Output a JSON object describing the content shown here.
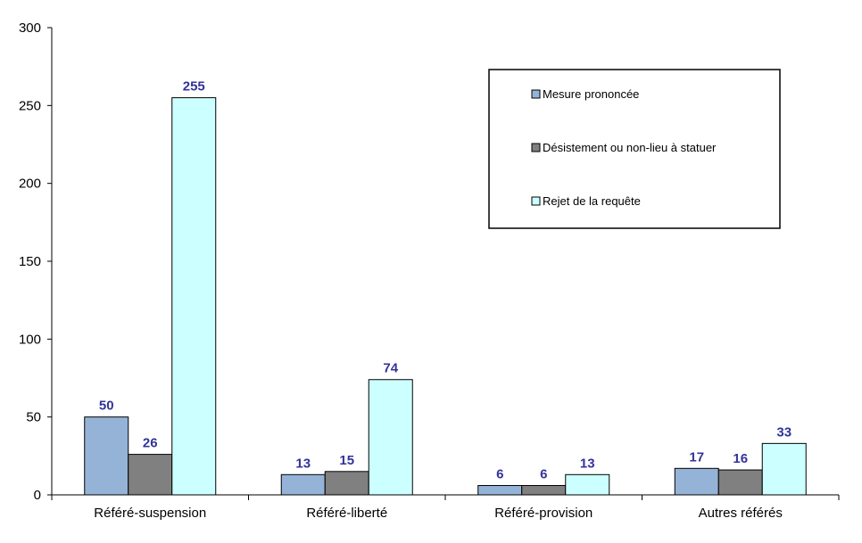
{
  "chart_data": {
    "type": "bar",
    "title": "",
    "xlabel": "",
    "ylabel": "",
    "categories": [
      "Référé-suspension",
      "Référé-liberté",
      "Référé-provision",
      "Autres référés"
    ],
    "ylim": [
      0,
      300
    ],
    "yticks": [
      0,
      50,
      100,
      150,
      200,
      250,
      300
    ],
    "grid": false,
    "legend_position": "top-right",
    "series": [
      {
        "name": "Mesure prononcée",
        "values": [
          50,
          13,
          6,
          17
        ],
        "color": "#95b3d7"
      },
      {
        "name": "Désistement ou non-lieu à statuer",
        "values": [
          26,
          15,
          6,
          16
        ],
        "color": "#808080"
      },
      {
        "name": "Rejet de la requête",
        "values": [
          255,
          74,
          13,
          33
        ],
        "color": "#ccffff"
      }
    ],
    "data_label_color": "#333399"
  }
}
